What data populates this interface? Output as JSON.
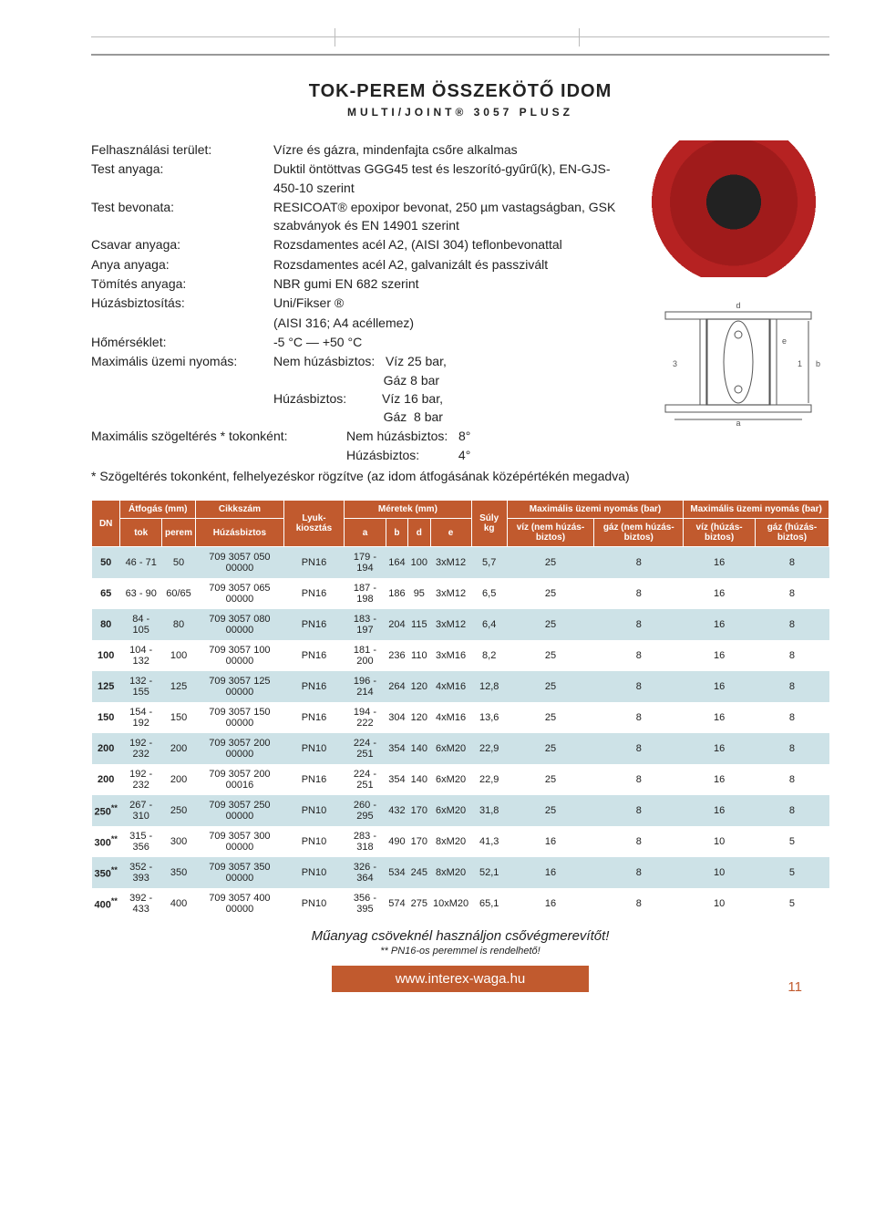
{
  "title": "TOK-PEREM ÖSSZEKÖTŐ IDOM",
  "subtitle": "MULTI/JOINT® 3057 PLUSZ",
  "specs": [
    {
      "label": "Felhasználási terület:",
      "value": "Vízre és gázra, mindenfajta csőre alkalmas"
    },
    {
      "label": "Test anyaga:",
      "value": "Duktil öntöttvas GGG45 test és leszorító-gyűrű(k), EN-GJS-450-10 szerint"
    },
    {
      "label": "Test bevonata:",
      "value": "RESICOAT® epoxipor bevonat, 250 µm vastagságban, GSK szabványok és EN 14901 szerint"
    },
    {
      "label": "Csavar anyaga:",
      "value": "Rozsdamentes acél A2, (AISI 304) teflonbevonattal"
    },
    {
      "label": "Anya anyaga:",
      "value": "Rozsdamentes acél A2, galvanizált és passzivált"
    },
    {
      "label": "Tömítés anyaga:",
      "value": "NBR gumi EN 682 szerint"
    },
    {
      "label": "Húzásbiztosítás:",
      "value": "Uni/Fikser ®"
    },
    {
      "label": "",
      "value": "(AISI 316;  A4 acéllemez)"
    },
    {
      "label": "Hőmérséklet:",
      "value": "-5 °C — +50 °C"
    }
  ],
  "pressure_label": "Maximális üzemi nyomás:",
  "pressure_lines": [
    "Nem húzásbiztos:   Víz 25 bar,",
    "                               Gáz 8 bar",
    "Húzásbiztos:          Víz 16 bar,",
    "                               Gáz  8 bar"
  ],
  "angle_label": "Maximális szögeltérés * tokonként:",
  "angle_lines": [
    "Nem húzásbiztos:   8°",
    "Húzásbiztos:           4°"
  ],
  "star_note": "* Szögeltérés tokonként, felhelyezéskor rögzítve (az idom átfogásának középértékén megadva)",
  "table": {
    "headers": {
      "dn": "DN",
      "atfogas": "Átfogás (mm)",
      "tok": "tok",
      "perem": "perem",
      "cikkszam": "Cikkszám",
      "huzasbiztos": "Húzásbiztos",
      "lyuk": "Lyuk-kiosztás",
      "meretek": "Méretek (mm)",
      "a": "a",
      "b": "b",
      "d": "d",
      "e": "e",
      "suly": "Súly kg",
      "max1": "Maximális üzemi nyomás (bar)",
      "max2": "Maximális üzemi nyomás (bar)",
      "viz_nem": "víz (nem húzás-biztos)",
      "gaz_nem": "gáz (nem húzás-biztos)",
      "viz_h": "víz (húzás-biztos)",
      "gaz_h": "gáz (húzás-biztos)"
    },
    "rows": [
      [
        "50",
        "46 - 71",
        "50",
        "709 3057 050 00000",
        "PN16",
        "179 - 194",
        "164",
        "100",
        "3xM12",
        "5,7",
        "25",
        "8",
        "16",
        "8"
      ],
      [
        "65",
        "63 - 90",
        "60/65",
        "709 3057 065 00000",
        "PN16",
        "187 - 198",
        "186",
        "95",
        "3xM12",
        "6,5",
        "25",
        "8",
        "16",
        "8"
      ],
      [
        "80",
        "84 - 105",
        "80",
        "709 3057 080 00000",
        "PN16",
        "183 - 197",
        "204",
        "115",
        "3xM12",
        "6,4",
        "25",
        "8",
        "16",
        "8"
      ],
      [
        "100",
        "104 - 132",
        "100",
        "709 3057 100 00000",
        "PN16",
        "181 - 200",
        "236",
        "110",
        "3xM16",
        "8,2",
        "25",
        "8",
        "16",
        "8"
      ],
      [
        "125",
        "132 - 155",
        "125",
        "709 3057 125 00000",
        "PN16",
        "196 - 214",
        "264",
        "120",
        "4xM16",
        "12,8",
        "25",
        "8",
        "16",
        "8"
      ],
      [
        "150",
        "154 - 192",
        "150",
        "709 3057 150 00000",
        "PN16",
        "194 - 222",
        "304",
        "120",
        "4xM16",
        "13,6",
        "25",
        "8",
        "16",
        "8"
      ],
      [
        "200",
        "192 - 232",
        "200",
        "709 3057 200 00000",
        "PN10",
        "224 - 251",
        "354",
        "140",
        "6xM20",
        "22,9",
        "25",
        "8",
        "16",
        "8"
      ],
      [
        "200",
        "192 - 232",
        "200",
        "709 3057 200 00016",
        "PN16",
        "224 - 251",
        "354",
        "140",
        "6xM20",
        "22,9",
        "25",
        "8",
        "16",
        "8"
      ],
      [
        "250**",
        "267 - 310",
        "250",
        "709 3057 250 00000",
        "PN10",
        "260 - 295",
        "432",
        "170",
        "6xM20",
        "31,8",
        "25",
        "8",
        "16",
        "8"
      ],
      [
        "300**",
        "315 - 356",
        "300",
        "709 3057 300 00000",
        "PN10",
        "283 - 318",
        "490",
        "170",
        "8xM20",
        "41,3",
        "16",
        "8",
        "10",
        "5"
      ],
      [
        "350**",
        "352 - 393",
        "350",
        "709 3057 350 00000",
        "PN10",
        "326 - 364",
        "534",
        "245",
        "8xM20",
        "52,1",
        "16",
        "8",
        "10",
        "5"
      ],
      [
        "400**",
        "392 - 433",
        "400",
        "709 3057 400 00000",
        "PN10",
        "356 - 395",
        "574",
        "275",
        "10xM20",
        "65,1",
        "16",
        "8",
        "10",
        "5"
      ]
    ]
  },
  "bottom_note1": "Műanyag csöveknél használjon csővégmerevítőt!",
  "bottom_note2": "** PN16-os peremmel is rendelhető!",
  "footer_url": "www.interex-waga.hu",
  "page_num": "11",
  "colors": {
    "accent": "#c15a2e",
    "row_alt": "#cde2e7"
  }
}
